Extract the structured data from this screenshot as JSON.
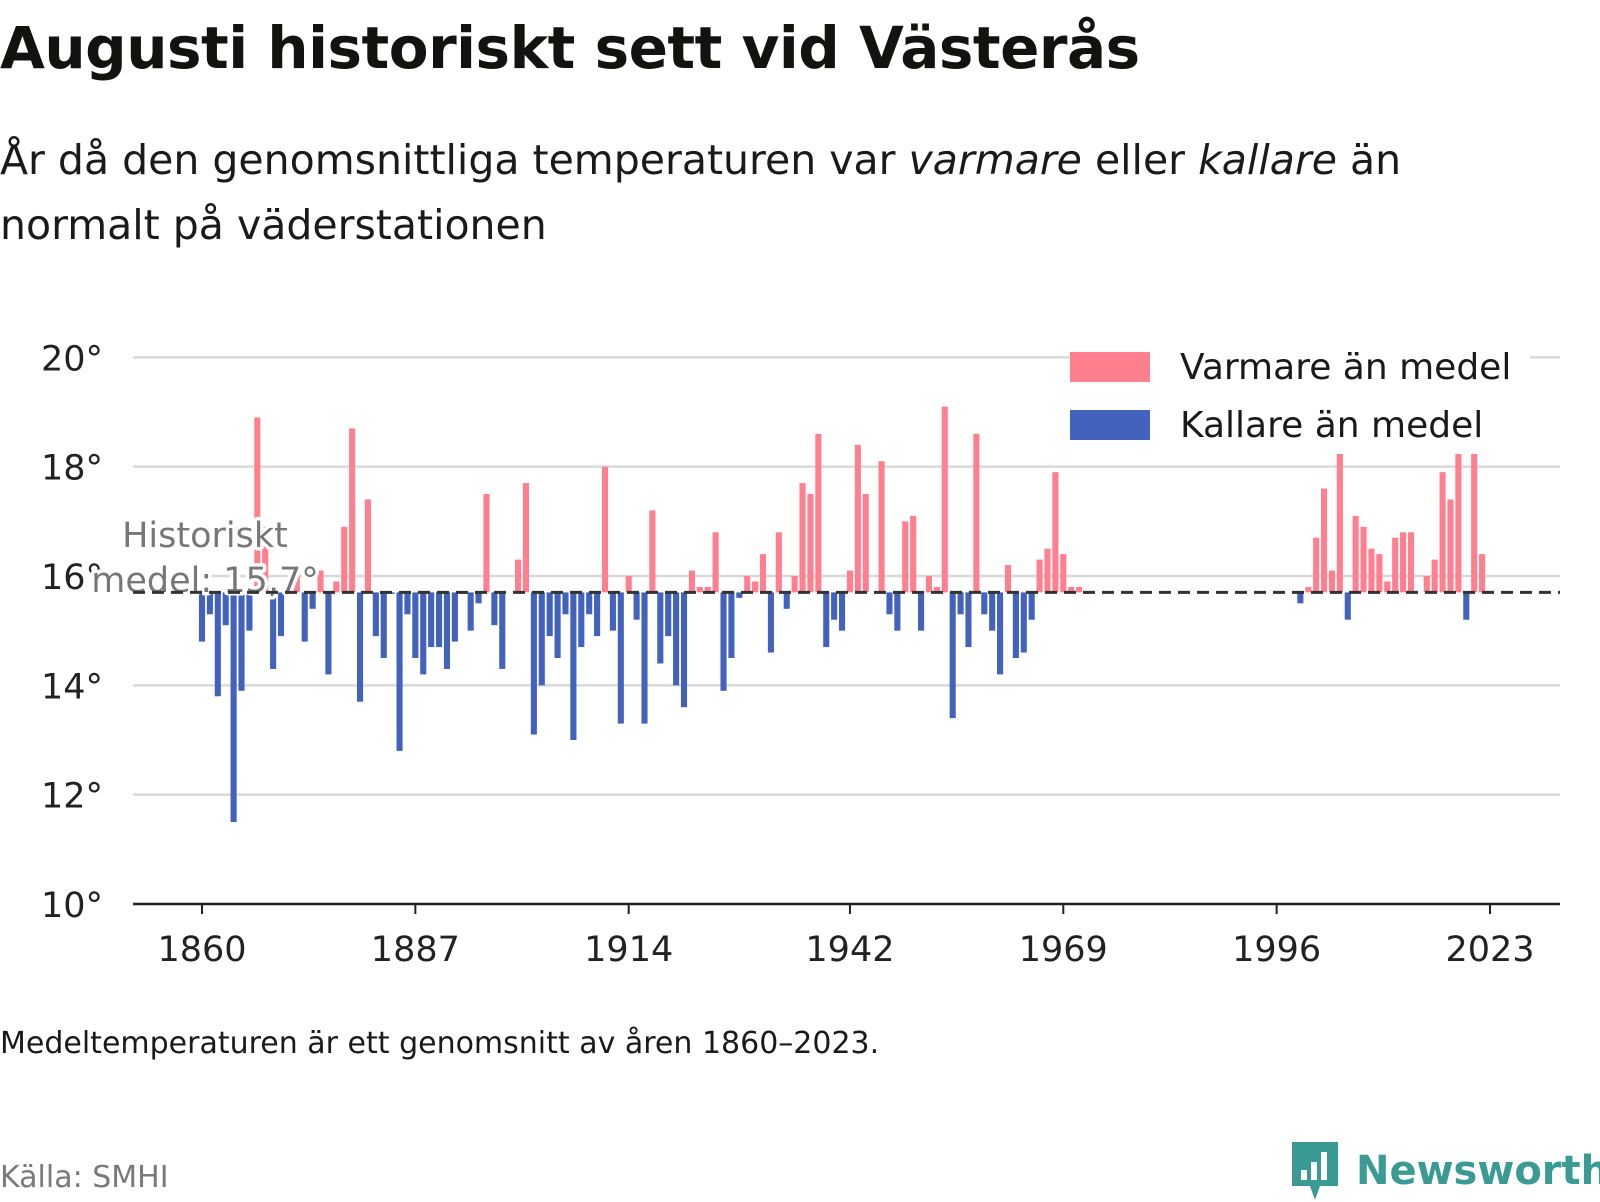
{
  "title": "Augusti historiskt sett vid Västerås",
  "subtitle": {
    "part1": "År då den genomsnittliga temperaturen var ",
    "warm_word": "varmare",
    "part2": " eller ",
    "cold_word": "kallare",
    "part3": " än normalt på väderstationen"
  },
  "legend": {
    "warm": "Varmare än medel",
    "cold": "Kallare än medel"
  },
  "colors": {
    "warm": "#ff7f8f",
    "cold": "#4262bd",
    "grid": "#d9d9d9",
    "axis": "#222222",
    "mean_line": "#333333",
    "brand": "#3a9a94"
  },
  "annotation": {
    "line1": "Historiskt",
    "line2": "medel: 15,7°"
  },
  "footnote": "Medeltemperaturen är ett genomsnitt av åren 1860–2023.",
  "source": "Källa: SMHI",
  "brand": {
    "name": "Newsworthy",
    "icon": "newsworthy-logo-icon"
  },
  "chart_data": {
    "type": "bar",
    "title": "Augusti historiskt sett vid Västerås",
    "baseline": 15.7,
    "ylim": [
      10,
      20.5
    ],
    "yticks": [
      10,
      12,
      14,
      16,
      18,
      20
    ],
    "ytick_labels": [
      "10°",
      "12°",
      "14°",
      "16°",
      "18°",
      "20°"
    ],
    "xlim": [
      1851.5,
      2031
    ],
    "xticks": [
      1860,
      1887,
      1914,
      1942,
      1969,
      1996,
      2023
    ],
    "xtick_labels": [
      "1860",
      "1887",
      "1914",
      "1942",
      "1969",
      "1996",
      "2023"
    ],
    "grid": true,
    "legend_position": "top-right",
    "series": [
      {
        "name": "Varmare än medel",
        "x": [
          1867,
          1868,
          1872,
          1875,
          1877,
          1878,
          1879,
          1881,
          1896,
          1900,
          1901,
          1911,
          1914,
          1917,
          1922,
          1923,
          1924,
          1925,
          1929,
          1930,
          1931,
          1933,
          1935,
          1936,
          1937,
          1938,
          1942,
          1943,
          1944,
          1946,
          1949,
          1950,
          1952,
          1953,
          1954,
          1958,
          1962,
          1966,
          1967,
          1968,
          1969,
          1970,
          1971,
          1972,
          2000,
          2001,
          2002,
          2003,
          2004,
          2006,
          2007,
          2008,
          2009,
          2010,
          2011,
          2012,
          2013,
          2015,
          2016,
          2017,
          2018,
          2019,
          2021,
          2022
        ],
        "values": [
          18.9,
          16.9,
          16.2,
          16.1,
          15.9,
          16.9,
          18.7,
          17.4,
          17.5,
          16.3,
          17.7,
          18.0,
          16.0,
          17.2,
          16.1,
          15.8,
          15.8,
          16.8,
          16.0,
          15.9,
          16.4,
          16.8,
          16.0,
          17.7,
          17.5,
          18.6,
          16.1,
          18.4,
          17.5,
          18.1,
          17.0,
          17.1,
          16.0,
          15.8,
          19.1,
          18.6,
          16.2,
          16.3,
          16.5,
          17.9,
          16.4,
          15.8,
          15.8,
          15.7,
          15.8,
          16.7,
          17.6,
          16.1,
          18.3,
          17.1,
          16.9,
          16.5,
          16.4,
          15.9,
          16.7,
          16.8,
          16.8,
          16.0,
          16.3,
          17.9,
          17.4,
          18.3,
          18.5,
          16.4
        ]
      },
      {
        "name": "Kallare än medel",
        "x": [
          1860,
          1861,
          1862,
          1863,
          1864,
          1865,
          1866,
          1869,
          1870,
          1871,
          1873,
          1874,
          1876,
          1880,
          1882,
          1883,
          1884,
          1885,
          1886,
          1887,
          1888,
          1889,
          1890,
          1891,
          1892,
          1893,
          1894,
          1895,
          1897,
          1898,
          1902,
          1903,
          1904,
          1905,
          1906,
          1907,
          1908,
          1909,
          1910,
          1912,
          1913,
          1915,
          1916,
          1918,
          1919,
          1920,
          1921,
          1926,
          1927,
          1928,
          1932,
          1934,
          1939,
          1940,
          1941,
          1947,
          1948,
          1951,
          1955,
          1956,
          1957,
          1959,
          1960,
          1961,
          1963,
          1964,
          1965,
          1999,
          2005,
          2020
        ],
        "values": [
          14.8,
          15.3,
          13.8,
          15.1,
          11.5,
          13.9,
          15.0,
          14.3,
          14.9,
          15.7,
          14.8,
          15.4,
          14.2,
          13.7,
          14.9,
          14.5,
          15.7,
          12.8,
          15.3,
          14.5,
          14.2,
          14.7,
          14.7,
          14.3,
          14.8,
          15.7,
          15.0,
          15.5,
          15.1,
          14.3,
          13.1,
          14.0,
          14.9,
          14.5,
          15.3,
          13.0,
          14.7,
          15.3,
          14.9,
          15.0,
          13.3,
          15.2,
          13.3,
          14.4,
          14.9,
          14.0,
          13.6,
          13.9,
          14.5,
          15.6,
          14.6,
          15.4,
          14.7,
          15.2,
          15.0,
          15.3,
          15.0,
          15.0,
          13.4,
          15.3,
          14.7,
          15.3,
          15.0,
          14.2,
          14.5,
          14.6,
          15.2,
          15.5,
          15.2,
          15.2
        ]
      }
    ]
  }
}
